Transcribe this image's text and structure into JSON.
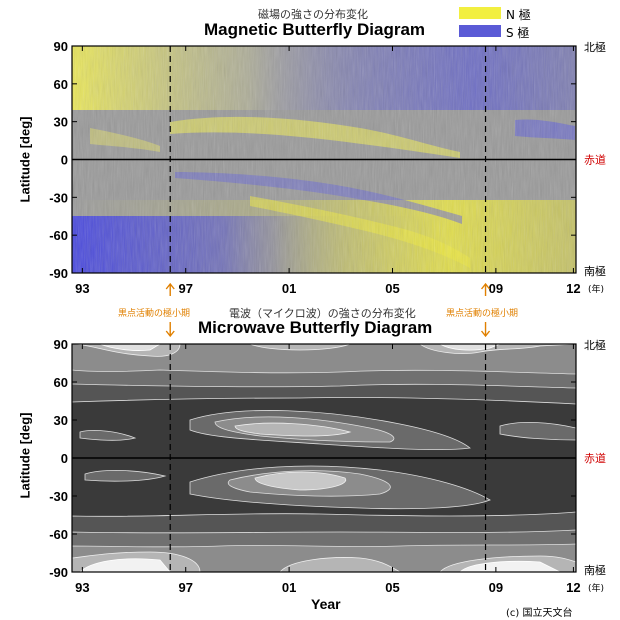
{
  "header": {
    "top_caption": "磁場の強さの分布変化",
    "top_title": "Magnetic Butterfly Diagram",
    "bottom_caption": "電波（マイクロ波）の強さの分布変化",
    "bottom_title": "Microwave Butterfly Diagram"
  },
  "legend": {
    "north_label": "N 極",
    "south_label": "S 極",
    "north_color": "#f2ef40",
    "south_color": "#5a5ad6"
  },
  "annotations": {
    "minimum_left": "黒点活動の極小期",
    "minimum_right": "黒点活動の極小期"
  },
  "credit": "(c) 国立天文台",
  "chart_data": [
    {
      "type": "heatmap",
      "title": "Magnetic Butterfly Diagram",
      "xlabel": "",
      "ylabel": "Latitude [deg]",
      "xlim": [
        1992.6,
        2012.1
      ],
      "ylim": [
        -90,
        90
      ],
      "x_tick_labels": [
        "93",
        "97",
        "01",
        "05",
        "09",
        "12"
      ],
      "x_tick_values": [
        1993,
        1997,
        2001,
        2005,
        2009,
        2012
      ],
      "x_unit": "(年)",
      "y_ticks": [
        90,
        60,
        30,
        0,
        -30,
        -60,
        -90
      ],
      "right_labels": {
        "north": "北極",
        "equator": "赤道",
        "south": "南極"
      },
      "equator_color": "#d00000",
      "minima_years": [
        1996.4,
        2008.6
      ],
      "colorscale": {
        "north_polarity": "#f2ef40",
        "south_polarity": "#5a5ad6",
        "neutral": "#9a9a9a"
      }
    },
    {
      "type": "heatmap",
      "title": "Microwave Butterfly Diagram",
      "xlabel": "Year",
      "ylabel": "Latitude [deg]",
      "xlim": [
        1992.6,
        2012.1
      ],
      "ylim": [
        -90,
        90
      ],
      "x_tick_labels": [
        "93",
        "97",
        "01",
        "05",
        "09",
        "12"
      ],
      "x_tick_values": [
        1993,
        1997,
        2001,
        2005,
        2009,
        2012
      ],
      "x_unit": "(年)",
      "y_ticks": [
        90,
        60,
        30,
        0,
        -30,
        -60,
        -90
      ],
      "right_labels": {
        "north": "北極",
        "equator": "赤道",
        "south": "南極"
      },
      "equator_color": "#d00000",
      "minima_years": [
        1996.4,
        2008.6
      ],
      "colorscale": {
        "low": "#3a3a3a",
        "high": "#ffffff"
      }
    }
  ]
}
